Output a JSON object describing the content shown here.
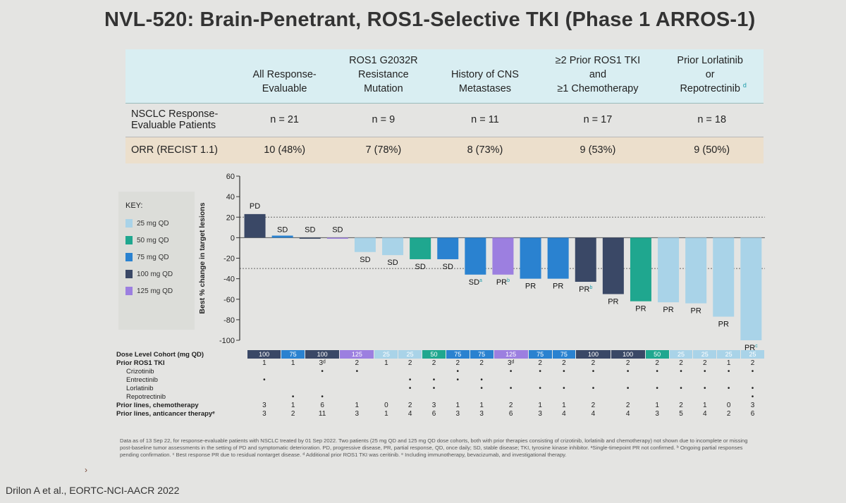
{
  "slide": {
    "title": "NVL-520: Brain-Penetrant, ROS1-Selective TKI (Phase 1 ARROS-1)",
    "citation": "Drilon A et al., EORTC-NCI-AACR 2022"
  },
  "summary_table": {
    "columns": [
      "All Response-\nEvaluable",
      "ROS1 G2032R\nResistance\nMutation",
      "History of CNS\nMetastases",
      "≥2 Prior ROS1 TKI\nand\n≥1 Chemotherapy",
      "Prior Lorlatinib\nor\nRepotrectinib"
    ],
    "col5_superscript": "d",
    "rows": [
      {
        "label": "NSCLC Response-\nEvaluable Patients",
        "values": [
          "n = 21",
          "n = 9",
          "n = 11",
          "n = 17",
          "n = 18"
        ]
      },
      {
        "label": "ORR (RECIST 1.1)",
        "values": [
          "10 (48%)",
          "7 (78%)",
          "8 (73%)",
          "9 (53%)",
          "9 (50%)"
        ]
      }
    ]
  },
  "key": {
    "title": "KEY:",
    "items": [
      {
        "label": "25 mg QD",
        "color": "#a9d3e8"
      },
      {
        "label": "50 mg QD",
        "color": "#1fa78f"
      },
      {
        "label": "75 mg QD",
        "color": "#2a82d0"
      },
      {
        "label": "100 mg QD",
        "color": "#3a4866"
      },
      {
        "label": "125 mg QD",
        "color": "#9c7fe0"
      }
    ]
  },
  "chart_data": {
    "type": "bar",
    "ylabel": "Best % change in target lesions",
    "ylim": [
      -100,
      60
    ],
    "yticks": [
      60,
      40,
      20,
      0,
      -20,
      -40,
      -60,
      -80,
      -100
    ],
    "reference_lines": [
      20,
      -30
    ],
    "dose_colors": {
      "25": "#a9d3e8",
      "50": "#1fa78f",
      "75": "#2a82d0",
      "100": "#3a4866",
      "125": "#9c7fe0"
    },
    "bars": [
      {
        "value": 23,
        "label": "PD",
        "sup": "",
        "dose": "100"
      },
      {
        "value": 2,
        "label": "SD",
        "sup": "",
        "dose": "75"
      },
      {
        "value": 0,
        "label": "SD",
        "sup": "",
        "dose": "100"
      },
      {
        "value": 0,
        "label": "SD",
        "sup": "",
        "dose": "125"
      },
      {
        "value": -14,
        "label": "SD",
        "sup": "",
        "dose": "25"
      },
      {
        "value": -17,
        "label": "SD",
        "sup": "",
        "dose": "25"
      },
      {
        "value": -21,
        "label": "SD",
        "sup": "",
        "dose": "50"
      },
      {
        "value": -21,
        "label": "SD",
        "sup": "",
        "dose": "75"
      },
      {
        "value": -36,
        "label": "SD",
        "sup": "a",
        "dose": "75"
      },
      {
        "value": -36,
        "label": "PR",
        "sup": "b",
        "dose": "125"
      },
      {
        "value": -40,
        "label": "PR",
        "sup": "",
        "dose": "75"
      },
      {
        "value": -40,
        "label": "PR",
        "sup": "",
        "dose": "75"
      },
      {
        "value": -43,
        "label": "PR",
        "sup": "b",
        "dose": "100"
      },
      {
        "value": -55,
        "label": "PR",
        "sup": "",
        "dose": "100"
      },
      {
        "value": -62,
        "label": "PR",
        "sup": "",
        "dose": "50"
      },
      {
        "value": -63,
        "label": "PR",
        "sup": "",
        "dose": "25"
      },
      {
        "value": -64,
        "label": "PR",
        "sup": "",
        "dose": "25"
      },
      {
        "value": -77,
        "label": "PR",
        "sup": "",
        "dose": "25"
      },
      {
        "value": -100,
        "label": "PR",
        "sup": "c",
        "dose": "25"
      }
    ]
  },
  "bottom_table": {
    "dose_label": "Dose Level Cohort (mg QD)",
    "dose_values": [
      "100",
      "75",
      "100",
      "125",
      "25",
      "25",
      "50",
      "75",
      "75",
      "125",
      "75",
      "75",
      "100",
      "100",
      "50",
      "25",
      "25",
      "25",
      "25"
    ],
    "rows": [
      {
        "label": "Prior ROS1 TKI",
        "bold": true,
        "cells": [
          "1",
          "1",
          "3ᵈ",
          "2",
          "1",
          "2",
          "2",
          "2",
          "2",
          "3ᵈ",
          "2",
          "2",
          "2",
          "2",
          "2",
          "2",
          "2",
          "1",
          "2"
        ]
      },
      {
        "label": "Crizotinib",
        "bold": false,
        "cells": [
          "",
          "",
          "•",
          "•",
          "",
          "",
          "",
          "•",
          "",
          "•",
          "•",
          "•",
          "•",
          "•",
          "•",
          "•",
          "•",
          "•",
          "•"
        ]
      },
      {
        "label": "Entrectinib",
        "bold": false,
        "cells": [
          "•",
          "",
          "",
          "",
          "",
          "•",
          "•",
          "•",
          "•",
          "",
          "",
          "",
          "",
          "",
          "",
          "",
          "",
          "",
          ""
        ]
      },
      {
        "label": "Lorlatinib",
        "bold": false,
        "cells": [
          "",
          "",
          "",
          "",
          "",
          "•",
          "•",
          "",
          "•",
          "•",
          "•",
          "•",
          "•",
          "•",
          "•",
          "•",
          "•",
          "•",
          "•"
        ]
      },
      {
        "label": "Repotrectinib",
        "bold": false,
        "cells": [
          "",
          "•",
          "•",
          "",
          "",
          "",
          "",
          "",
          "",
          "",
          "",
          "",
          "",
          "",
          "",
          "",
          "",
          "",
          "•"
        ]
      },
      {
        "label": "Prior lines, chemotherapy",
        "bold": true,
        "cells": [
          "3",
          "1",
          "6",
          "1",
          "0",
          "2",
          "3",
          "1",
          "1",
          "2",
          "1",
          "1",
          "2",
          "2",
          "1",
          "2",
          "1",
          "0",
          "3"
        ]
      },
      {
        "label": "Prior lines, anticancer therapyᵉ",
        "bold": true,
        "cells": [
          "3",
          "2",
          "11",
          "3",
          "1",
          "4",
          "6",
          "3",
          "3",
          "6",
          "3",
          "4",
          "4",
          "4",
          "3",
          "5",
          "4",
          "2",
          "6"
        ]
      }
    ]
  },
  "footnote": "Data as of 13 Sep 22, for response-evaluable patients with NSCLC treated by 01 Sep 2022. Two patients (25 mg QD and 125 mg QD dose cohorts, both with prior therapies consisting of crizotinib, lorlatinib and chemotherapy) not shown due to incomplete or missing post-baseline tumor assessments in the setting of PD and symptomatic deterioration. PD, progressive disease, PR, partial response, QD, once daily; SD, stable disease; TKI, tyrosine kinase inhibitor. ᵃSingle-timepoint PR not confirmed. ᵇ Ongoing partial responses pending confirmation. ᶜ Best response PR due to residual nontarget disease. ᵈ Additional prior ROS1 TKI was ceritinib. ᵉ Including immunotherapy, bevacizumab, and investigational therapy."
}
